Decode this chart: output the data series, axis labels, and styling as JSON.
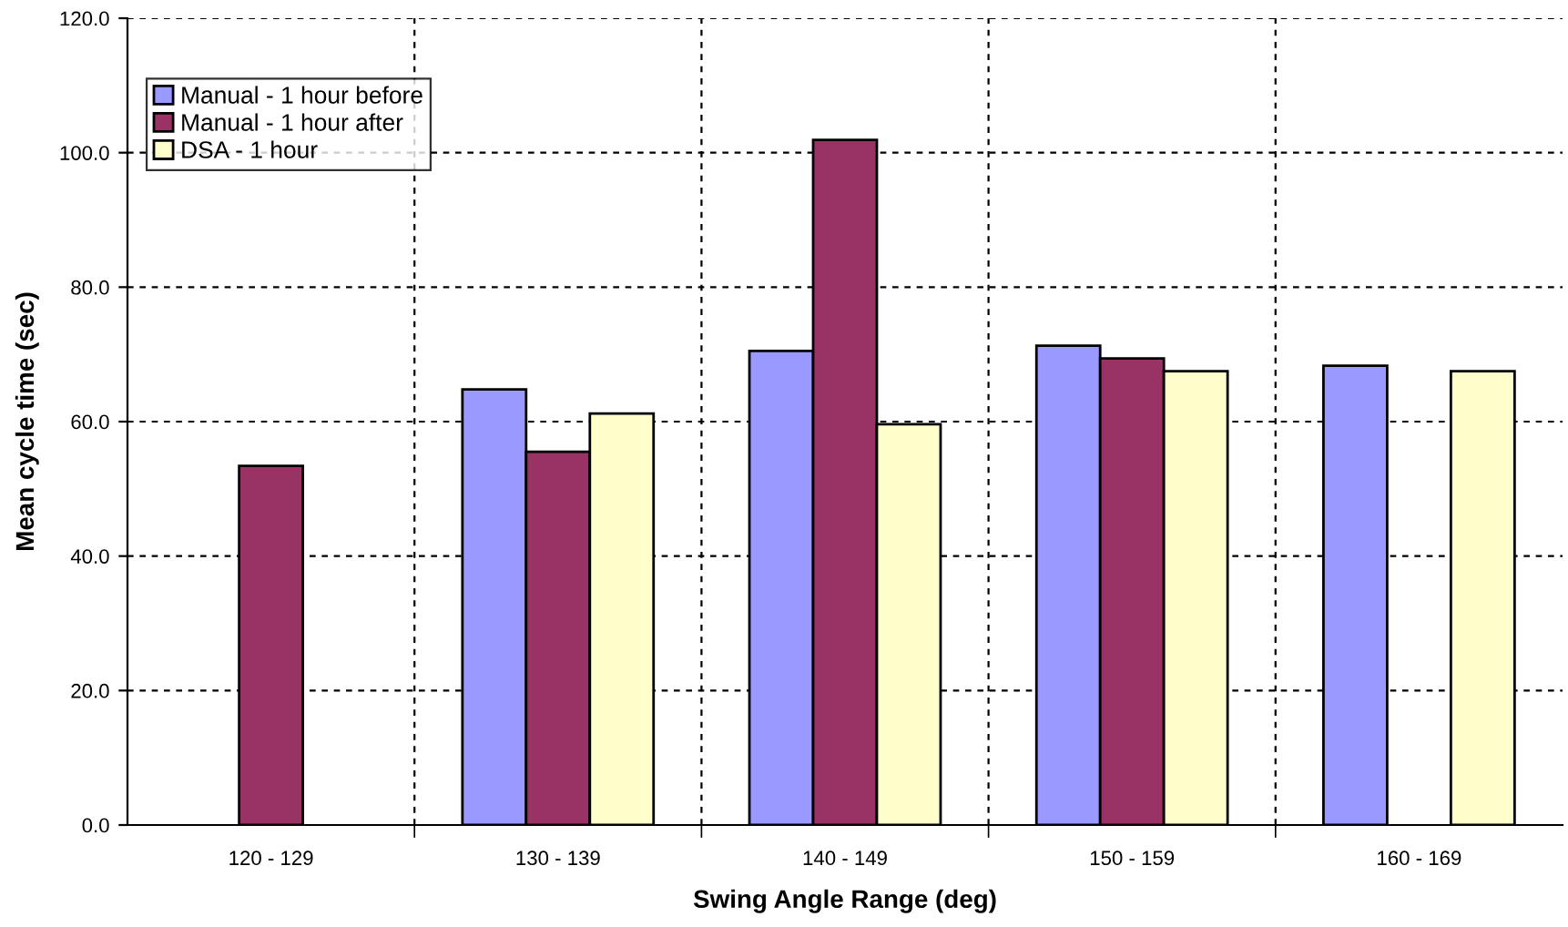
{
  "chart_data": {
    "type": "bar",
    "xlabel": "Swing Angle Range (deg)",
    "ylabel": "Mean cycle time (sec)",
    "categories": [
      "120 - 129",
      "130 - 139",
      "140 - 149",
      "150 - 159",
      "160 - 169"
    ],
    "series": [
      {
        "name": "Manual - 1 hour before",
        "color": "#9999ff",
        "values": [
          null,
          64.8,
          70.5,
          71.3,
          68.3
        ]
      },
      {
        "name": "Manual - 1 hour after",
        "color": "#993366",
        "values": [
          53.4,
          55.5,
          101.9,
          69.4,
          null
        ]
      },
      {
        "name": "DSA - 1 hour",
        "color": "#ffffcc",
        "values": [
          null,
          61.2,
          59.6,
          67.5,
          67.5
        ]
      }
    ],
    "ylim": [
      0,
      120
    ],
    "yticks": [
      {
        "value": 0,
        "label": "0.0"
      },
      {
        "value": 20,
        "label": "20.0"
      },
      {
        "value": 40,
        "label": "40.0"
      },
      {
        "value": 60,
        "label": "60.0"
      },
      {
        "value": 80,
        "label": "80.0"
      },
      {
        "value": 100,
        "label": "100.0"
      },
      {
        "value": 120,
        "label": "120.0"
      }
    ],
    "grid": true,
    "legend": "top left"
  }
}
